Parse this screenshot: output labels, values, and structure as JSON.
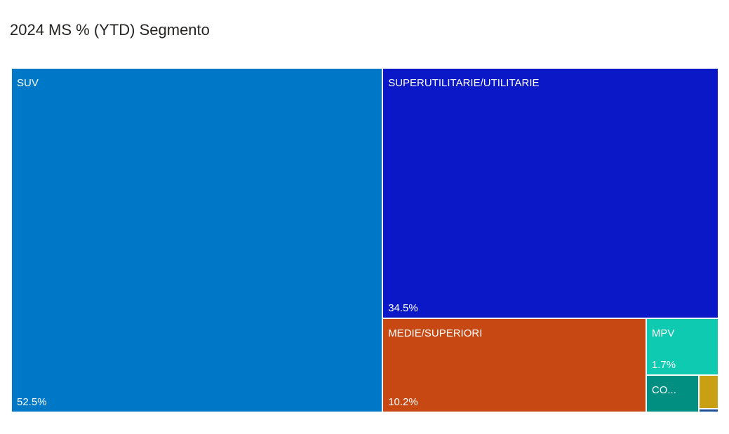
{
  "chart_data": {
    "type": "treemap",
    "title": "2024 MS % (YTD) Segmento",
    "items": [
      {
        "name": "SUV",
        "label": "SUV",
        "value": 52.5,
        "value_label": "52.5%",
        "color": "#0078C8"
      },
      {
        "name": "SUPERUTILITARIE/UTILITARIE",
        "label": "SUPERUTILITARIE/UTILITARIE",
        "value": 34.5,
        "value_label": "34.5%",
        "color": "#0B18C8"
      },
      {
        "name": "MEDIE/SUPERIORI",
        "label": "MEDIE/SUPERIORI",
        "value": 10.2,
        "value_label": "10.2%",
        "color": "#C84814"
      },
      {
        "name": "MPV",
        "label": "MPV",
        "value": 1.7,
        "value_label": "1.7%",
        "color": "#0ECAB0"
      },
      {
        "name": "CO...",
        "label": "CO...",
        "value": 0.8,
        "value_label": "",
        "color": "#008F80"
      },
      {
        "name": "",
        "label": "",
        "value": 0.27,
        "value_label": "",
        "color": "#C9A014"
      },
      {
        "name": "",
        "label": "",
        "value": 0.03,
        "value_label": "",
        "color": "#1B4F9C"
      }
    ]
  }
}
